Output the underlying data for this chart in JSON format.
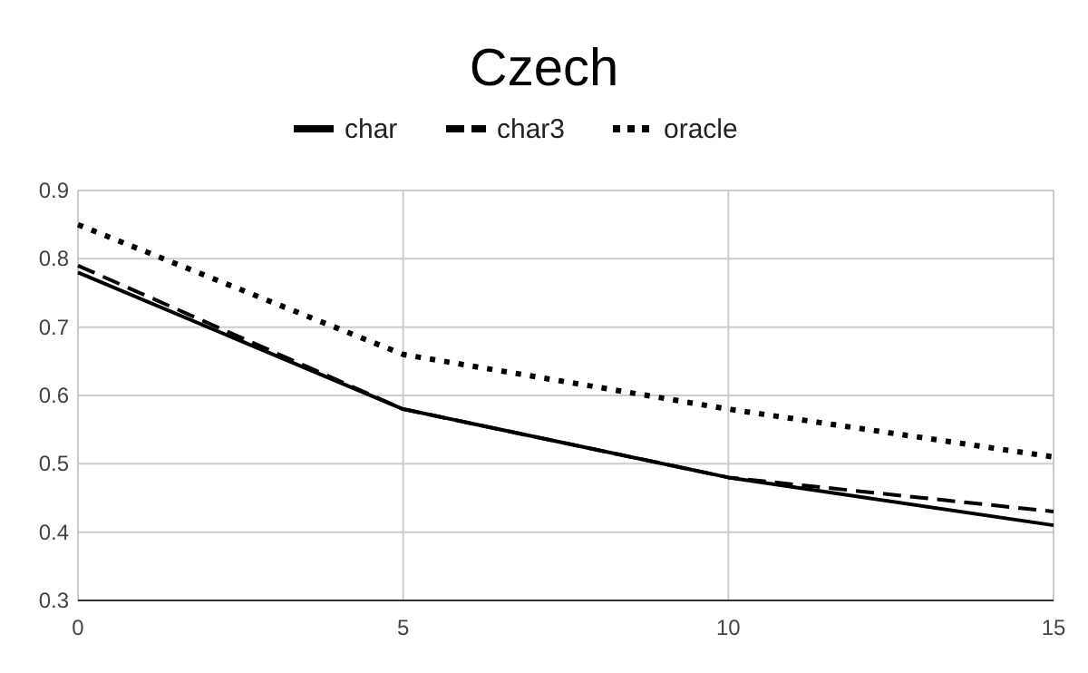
{
  "chart_data": {
    "type": "line",
    "title": "Czech",
    "x": [
      0,
      5,
      10,
      15
    ],
    "series": [
      {
        "name": "char",
        "color": "#000000",
        "values": [
          0.78,
          0.58,
          0.48,
          0.41
        ],
        "line_style": "solid"
      },
      {
        "name": "char3",
        "color": "#000000",
        "values": [
          0.79,
          0.58,
          0.48,
          0.43
        ],
        "line_style": "dashed"
      },
      {
        "name": "oracle",
        "color": "#000000",
        "values": [
          0.85,
          0.66,
          0.58,
          0.51
        ],
        "line_style": "dotted"
      }
    ],
    "xlim": [
      0,
      15
    ],
    "xticks": [
      0,
      5,
      10,
      15
    ],
    "ylim": [
      0.3,
      0.9
    ],
    "yticks": [
      0.3,
      0.4,
      0.5,
      0.6,
      0.7,
      0.8,
      0.9
    ],
    "grid": true,
    "legend": "top",
    "marker": "none"
  }
}
